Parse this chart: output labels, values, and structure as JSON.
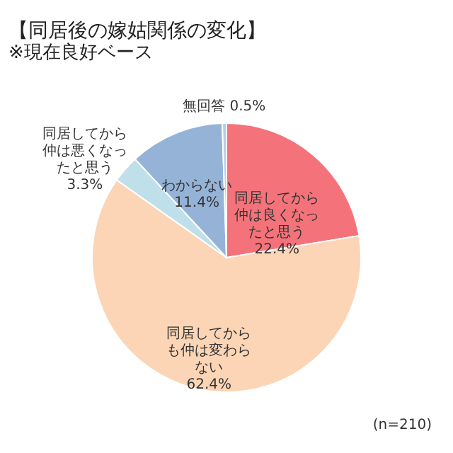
{
  "chart_data": {
    "type": "pie",
    "title": "【同居後の嫁姑関係の変化】",
    "subtitle": "※現在良好ベース",
    "categories": [
      "同居してから仲は良くなったと思う",
      "同居してからも仲は変わらない",
      "同居してから仲は悪くなったと思う",
      "わからない",
      "無回答"
    ],
    "values": [
      22.4,
      62.4,
      3.3,
      11.4,
      0.5
    ],
    "value_labels": [
      "22.4%",
      "62.4%",
      "3.3%",
      "11.4%",
      "0.5%"
    ],
    "colors": [
      "#f4737a",
      "#fbd5b5",
      "#bfe0ea",
      "#95b3d7",
      "#b8cce4"
    ],
    "annotations": [
      "(n=210)"
    ]
  }
}
